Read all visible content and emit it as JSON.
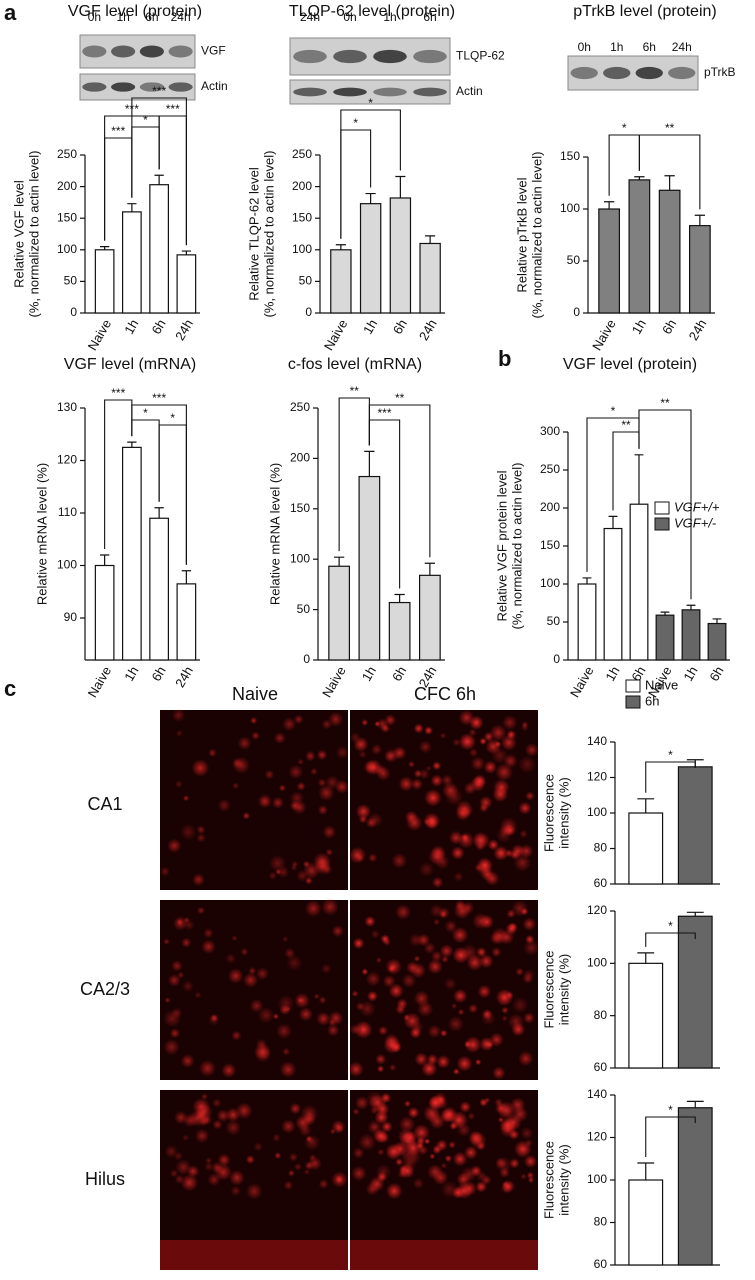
{
  "panel_labels": [
    "a",
    "b",
    "c"
  ],
  "blots": [
    {
      "lanes": [
        "0h",
        "1h",
        "6h",
        "24h"
      ],
      "bands": [
        "VGF",
        "Actin"
      ]
    },
    {
      "lanes": [
        "24h",
        "0h",
        "1h",
        "6h"
      ],
      "bands": [
        "TLQP-62",
        "Actin"
      ]
    },
    {
      "lanes": [
        "0h",
        "1h",
        "6h",
        "24h"
      ],
      "bands": [
        "pTrkB"
      ]
    }
  ],
  "micrographs": {
    "columns": [
      "Naive",
      "CFC 6h"
    ],
    "rows": [
      "CA1",
      "CA2/3",
      "Hilus"
    ]
  },
  "panel_c_legend": {
    "names": [
      "Naive",
      "6h"
    ],
    "colors": [
      "#ffffff",
      "#666666"
    ]
  },
  "chart_data": [
    {
      "type": "bar",
      "title": "VGF level (protein)",
      "ylabel": [
        "Relative VGF level",
        "(%, normalized to actin level)"
      ],
      "categories": [
        "Naive",
        "1h",
        "6h",
        "24h"
      ],
      "values": [
        100,
        160,
        203,
        92
      ],
      "errors": [
        5,
        13,
        15,
        6
      ],
      "color": "#ffffff",
      "ylim": [
        0,
        250
      ],
      "yticks": [
        0,
        50,
        100,
        150,
        200,
        250
      ],
      "annotations": [
        "***",
        "*",
        "***",
        "***",
        "***"
      ]
    },
    {
      "type": "bar",
      "title": "TLQP-62 level (protein)",
      "ylabel": [
        "Relative TLQP-62 level",
        "(%, normalized to actin level)"
      ],
      "categories": [
        "Naive",
        "1h",
        "6h",
        "24h"
      ],
      "values": [
        100,
        173,
        182,
        110
      ],
      "errors": [
        8,
        16,
        34,
        12
      ],
      "color": "#d9d9d9",
      "ylim": [
        0,
        250
      ],
      "yticks": [
        0,
        50,
        100,
        150,
        200,
        250
      ],
      "annotations": [
        "*",
        "*"
      ]
    },
    {
      "type": "bar",
      "title": "pTrkB level (protein)",
      "ylabel": [
        "Relative pTrkB level",
        "(%, normalized to actin level)"
      ],
      "categories": [
        "Naive",
        "1h",
        "6h",
        "24h"
      ],
      "values": [
        100,
        128,
        118,
        84
      ],
      "errors": [
        7,
        3,
        14,
        10
      ],
      "color": "#808080",
      "ylim": [
        0,
        150
      ],
      "yticks": [
        0,
        50,
        100,
        150
      ],
      "annotations": [
        "*",
        "**"
      ]
    },
    {
      "type": "bar",
      "title": "VGF level (mRNA)",
      "ylabel": [
        "Relative mRNA level (%)"
      ],
      "categories": [
        "Naive",
        "1h",
        "6h",
        "24h"
      ],
      "values": [
        100,
        122.5,
        109,
        96.5
      ],
      "errors": [
        2,
        1,
        2,
        2.5
      ],
      "color": "#ffffff",
      "ylim": [
        82,
        130
      ],
      "yticks": [
        90,
        100,
        110,
        120,
        130
      ],
      "annotations": [
        "***",
        "*",
        "***",
        "*"
      ]
    },
    {
      "type": "bar",
      "title": "c-fos level (mRNA)",
      "ylabel": [
        "Relative mRNA level (%)"
      ],
      "categories": [
        "Naive",
        "1h",
        "6h",
        "24h"
      ],
      "values": [
        93,
        182,
        57,
        84
      ],
      "errors": [
        9,
        25,
        8,
        12
      ],
      "color": "#d9d9d9",
      "ylim": [
        0,
        250
      ],
      "yticks": [
        0,
        50,
        100,
        150,
        200,
        250
      ],
      "annotations": [
        "**",
        "***",
        "**"
      ]
    },
    {
      "type": "bar",
      "title": "VGF level (protein)",
      "ylabel": [
        "Relative VGF protein level",
        "(%, normalized to actin level)"
      ],
      "categories": [
        "Naive",
        "1h",
        "6h",
        "Naive",
        "1h",
        "6h"
      ],
      "series": [
        {
          "name": "VGF+/+",
          "color": "#ffffff",
          "values": [
            100,
            173,
            205,
            null,
            null,
            null
          ],
          "errors": [
            8,
            16,
            65,
            null,
            null,
            null
          ]
        },
        {
          "name": "VGF+/-",
          "color": "#666666",
          "values": [
            null,
            null,
            null,
            59,
            66,
            48
          ],
          "errors": [
            null,
            null,
            null,
            4,
            6,
            6
          ]
        }
      ],
      "ylim": [
        0,
        300
      ],
      "yticks": [
        0,
        50,
        100,
        150,
        200,
        250,
        300
      ],
      "annotations": [
        "*",
        "**",
        "**"
      ]
    },
    {
      "type": "bar",
      "ylabel": [
        "Fluorescence",
        "intensity (%)"
      ],
      "categories": [
        null,
        null
      ],
      "values": [
        100,
        126
      ],
      "errors": [
        8,
        4
      ],
      "colors": [
        "#ffffff",
        "#666666"
      ],
      "ylim": [
        60,
        140
      ],
      "yticks": [
        60,
        80,
        100,
        120,
        140
      ],
      "annotations": [
        "*"
      ]
    },
    {
      "type": "bar",
      "ylabel": [
        "Fluorescence",
        "intensity (%)"
      ],
      "categories": [
        null,
        null
      ],
      "values": [
        100,
        118
      ],
      "errors": [
        4,
        1.5
      ],
      "colors": [
        "#ffffff",
        "#666666"
      ],
      "ylim": [
        60,
        120
      ],
      "yticks": [
        60,
        80,
        100,
        120
      ],
      "annotations": [
        "*"
      ]
    },
    {
      "type": "bar",
      "ylabel": [
        "Fluorescence",
        "intensity (%)"
      ],
      "categories": [
        null,
        null
      ],
      "values": [
        100,
        134
      ],
      "errors": [
        8,
        3
      ],
      "colors": [
        "#ffffff",
        "#666666"
      ],
      "ylim": [
        60,
        140
      ],
      "yticks": [
        60,
        80,
        100,
        120,
        140
      ],
      "annotations": [
        "*"
      ]
    }
  ]
}
